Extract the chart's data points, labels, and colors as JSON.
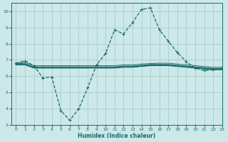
{
  "xlabel": "Humidex (Indice chaleur)",
  "ylabel": "",
  "bg_color": "#cce8e8",
  "grid_color": "#aacccc",
  "line_color": "#1a6b6b",
  "xlim": [
    -0.5,
    23
  ],
  "ylim": [
    3,
    10.5
  ],
  "yticks": [
    3,
    4,
    5,
    6,
    7,
    8,
    9,
    10
  ],
  "xticks": [
    0,
    1,
    2,
    3,
    4,
    5,
    6,
    7,
    8,
    9,
    10,
    11,
    12,
    13,
    14,
    15,
    16,
    17,
    18,
    19,
    20,
    21,
    22,
    23
  ],
  "line1_x": [
    0,
    1,
    2,
    3,
    4,
    5,
    6,
    7,
    8,
    9,
    10,
    11,
    12,
    13,
    14,
    15,
    16,
    17,
    18,
    19,
    20,
    21,
    22,
    23
  ],
  "line1_y": [
    6.8,
    6.95,
    6.65,
    5.9,
    5.95,
    3.9,
    3.3,
    4.0,
    5.3,
    6.7,
    7.4,
    8.85,
    8.6,
    9.3,
    10.1,
    10.2,
    8.85,
    8.15,
    7.45,
    6.9,
    6.5,
    6.35,
    6.4,
    6.5
  ],
  "line2_x": [
    0,
    1,
    2,
    3,
    4,
    5,
    6,
    7,
    8,
    9,
    10,
    11,
    12,
    13,
    14,
    15,
    16,
    17,
    18,
    19,
    20,
    21,
    22,
    23
  ],
  "line2_y": [
    6.75,
    6.75,
    6.55,
    6.55,
    6.55,
    6.55,
    6.55,
    6.55,
    6.55,
    6.55,
    6.55,
    6.55,
    6.6,
    6.6,
    6.65,
    6.7,
    6.7,
    6.7,
    6.65,
    6.6,
    6.55,
    6.5,
    6.45,
    6.45
  ],
  "line3_x": [
    0,
    1,
    2,
    3,
    4,
    5,
    6,
    7,
    8,
    9,
    10,
    11,
    12,
    13,
    14,
    15,
    16,
    17,
    18,
    19,
    20,
    21,
    22,
    23
  ],
  "line3_y": [
    6.8,
    6.85,
    6.65,
    6.65,
    6.65,
    6.65,
    6.65,
    6.65,
    6.65,
    6.65,
    6.65,
    6.65,
    6.7,
    6.7,
    6.75,
    6.78,
    6.8,
    6.8,
    6.75,
    6.7,
    6.65,
    6.6,
    6.55,
    6.55
  ],
  "line4_x": [
    0,
    1,
    2,
    3,
    4,
    5,
    6,
    7,
    8,
    9,
    10,
    11,
    12,
    13,
    14,
    15,
    16,
    17,
    18,
    19,
    20,
    21,
    22,
    23
  ],
  "line4_y": [
    6.7,
    6.7,
    6.5,
    6.5,
    6.5,
    6.5,
    6.5,
    6.5,
    6.5,
    6.5,
    6.5,
    6.5,
    6.55,
    6.55,
    6.6,
    6.65,
    6.65,
    6.65,
    6.6,
    6.55,
    6.5,
    6.45,
    6.4,
    6.4
  ]
}
